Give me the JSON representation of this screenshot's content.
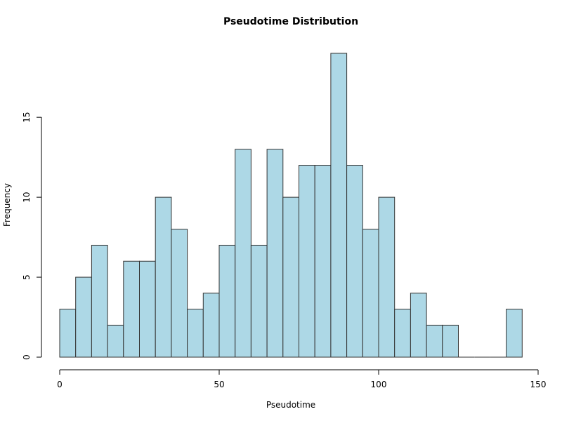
{
  "chart_data": {
    "type": "bar",
    "title": "Pseudotime Distribution",
    "xlabel": "Pseudotime",
    "ylabel": "Frequency",
    "bin_width": 5,
    "bins_start": 0,
    "values": [
      3,
      5,
      7,
      2,
      6,
      6,
      10,
      8,
      3,
      4,
      7,
      13,
      7,
      13,
      10,
      12,
      12,
      19,
      12,
      8,
      10,
      3,
      4,
      2,
      2,
      0,
      0,
      0,
      3
    ],
    "xlim": [
      0,
      150
    ],
    "ylim": [
      0,
      19
    ],
    "x_ticks": [
      0,
      50,
      100,
      150
    ],
    "y_ticks": [
      0,
      5,
      10,
      15
    ],
    "bar_color": "#add8e6",
    "bar_edge_color": "#333333",
    "grid": false
  }
}
